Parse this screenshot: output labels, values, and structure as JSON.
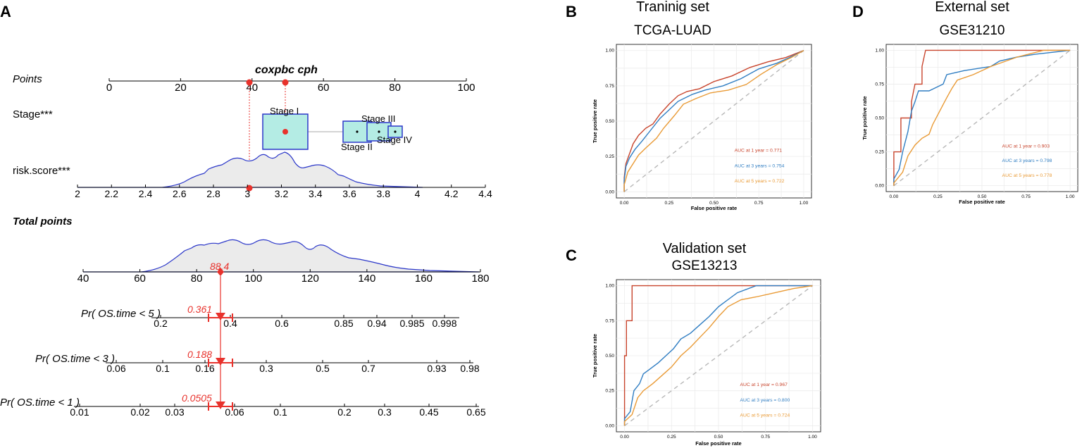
{
  "panels": {
    "A": "A",
    "B": "B",
    "C": "C",
    "D": "D"
  },
  "nomogram": {
    "title": "coxpbc cph",
    "points_label": "Points",
    "points_ticks": [
      "0",
      "20",
      "40",
      "60",
      "80",
      "100"
    ],
    "stage_label": "Stage***",
    "stage_boxes": [
      {
        "label": "Stage I",
        "points": 50
      },
      {
        "label": "Stage II",
        "points": 70
      },
      {
        "label": "Stage III",
        "points": 75
      },
      {
        "label": "Stage IV",
        "points": 79
      }
    ],
    "risk_label": "risk.score***",
    "risk_ticks": [
      "2",
      "2.2",
      "2.4",
      "2.6",
      "2.8",
      "3",
      "3.2",
      "3.4",
      "3.6",
      "3.8",
      "4",
      "4.2",
      "4.4"
    ],
    "total_label": "Total points",
    "total_ticks": [
      "40",
      "60",
      "80",
      "100",
      "120",
      "140",
      "160",
      "180"
    ],
    "total_value": "88.4",
    "prob_rows": [
      {
        "label": "Pr( OS.time < 5 )",
        "value": "0.361",
        "ticks": [
          "0.2",
          "0.4",
          "0.6",
          "0.85",
          "0.94",
          "0.985",
          "0.998"
        ]
      },
      {
        "label": "Pr( OS.time < 3 )",
        "value": "0.188",
        "ticks": [
          "0.06",
          "0.1",
          "0.16",
          "0.3",
          "0.5",
          "0.7",
          "0.93",
          "0.98"
        ]
      },
      {
        "label": "Pr( OS.time < 1 )",
        "value": "0.0505",
        "ticks": [
          "0.01",
          "0.02",
          "0.03",
          "0.06",
          "0.1",
          "0.2",
          "0.3",
          "0.45",
          "0.65"
        ]
      }
    ]
  },
  "colors": {
    "red": "#e8322c",
    "blue": "#2b37c9",
    "teal": "#b4ece4",
    "roc1": "#c8442c",
    "roc3": "#2f7dc2",
    "roc5": "#e99a35"
  },
  "chart_data": [
    {
      "panel": "B",
      "type": "line",
      "title": "Traninig set",
      "subtitle": "TCGA-LUAD",
      "xlabel": "False positive rate",
      "ylabel": "True positive rate",
      "xlim": [
        0,
        1
      ],
      "ylim": [
        0,
        1
      ],
      "ticks": [
        "0.00",
        "0.25",
        "0.50",
        "0.75",
        "1.00"
      ],
      "legend": [
        "AUC at 1 year = 0.771",
        "AUC at 3 years = 0.754",
        "AUC at 5 years = 0.722"
      ],
      "series": [
        {
          "name": "1 year",
          "values": [
            [
              0,
              0
            ],
            [
              0,
              0.1
            ],
            [
              0.01,
              0.2
            ],
            [
              0.03,
              0.27
            ],
            [
              0.05,
              0.34
            ],
            [
              0.08,
              0.4
            ],
            [
              0.12,
              0.45
            ],
            [
              0.16,
              0.48
            ],
            [
              0.2,
              0.55
            ],
            [
              0.25,
              0.62
            ],
            [
              0.3,
              0.68
            ],
            [
              0.35,
              0.71
            ],
            [
              0.42,
              0.73
            ],
            [
              0.5,
              0.78
            ],
            [
              0.6,
              0.82
            ],
            [
              0.7,
              0.88
            ],
            [
              0.8,
              0.92
            ],
            [
              0.9,
              0.95
            ],
            [
              1,
              1
            ]
          ]
        },
        {
          "name": "3 years",
          "values": [
            [
              0,
              0
            ],
            [
              0,
              0.08
            ],
            [
              0.01,
              0.18
            ],
            [
              0.03,
              0.24
            ],
            [
              0.06,
              0.3
            ],
            [
              0.1,
              0.36
            ],
            [
              0.15,
              0.44
            ],
            [
              0.2,
              0.52
            ],
            [
              0.25,
              0.58
            ],
            [
              0.3,
              0.64
            ],
            [
              0.38,
              0.69
            ],
            [
              0.45,
              0.72
            ],
            [
              0.55,
              0.75
            ],
            [
              0.65,
              0.8
            ],
            [
              0.75,
              0.87
            ],
            [
              0.85,
              0.91
            ],
            [
              0.92,
              0.95
            ],
            [
              1,
              1
            ]
          ]
        },
        {
          "name": "5 years",
          "values": [
            [
              0,
              0
            ],
            [
              0,
              0.05
            ],
            [
              0.02,
              0.14
            ],
            [
              0.05,
              0.2
            ],
            [
              0.08,
              0.26
            ],
            [
              0.12,
              0.31
            ],
            [
              0.18,
              0.38
            ],
            [
              0.22,
              0.45
            ],
            [
              0.28,
              0.54
            ],
            [
              0.33,
              0.62
            ],
            [
              0.4,
              0.66
            ],
            [
              0.48,
              0.7
            ],
            [
              0.58,
              0.72
            ],
            [
              0.68,
              0.76
            ],
            [
              0.76,
              0.83
            ],
            [
              0.85,
              0.9
            ],
            [
              0.93,
              0.95
            ],
            [
              1,
              1
            ]
          ]
        }
      ]
    },
    {
      "panel": "C",
      "type": "line",
      "title": "Validation set",
      "subtitle": "GSE13213",
      "xlabel": "False positive rate",
      "ylabel": "True positive rate",
      "xlim": [
        0,
        1
      ],
      "ylim": [
        0,
        1
      ],
      "ticks": [
        "0.00",
        "0.25",
        "0.50",
        "0.75",
        "1.00"
      ],
      "legend": [
        "AUC at 1 year = 0.967",
        "AUC at 3 years = 0.800",
        "AUC at 5 years = 0.724"
      ],
      "series": [
        {
          "name": "1 year",
          "values": [
            [
              0,
              0
            ],
            [
              0,
              0.5
            ],
            [
              0.01,
              0.5
            ],
            [
              0.01,
              0.75
            ],
            [
              0.04,
              0.75
            ],
            [
              0.04,
              1
            ],
            [
              0.6,
              1
            ],
            [
              0.6,
              1
            ],
            [
              1,
              1
            ]
          ]
        },
        {
          "name": "3 years",
          "values": [
            [
              0,
              0
            ],
            [
              0,
              0.05
            ],
            [
              0.03,
              0.1
            ],
            [
              0.05,
              0.25
            ],
            [
              0.08,
              0.3
            ],
            [
              0.1,
              0.37
            ],
            [
              0.13,
              0.4
            ],
            [
              0.18,
              0.45
            ],
            [
              0.22,
              0.5
            ],
            [
              0.26,
              0.55
            ],
            [
              0.3,
              0.62
            ],
            [
              0.35,
              0.66
            ],
            [
              0.4,
              0.72
            ],
            [
              0.45,
              0.78
            ],
            [
              0.5,
              0.85
            ],
            [
              0.55,
              0.9
            ],
            [
              0.6,
              0.95
            ],
            [
              0.7,
              1
            ],
            [
              0.9,
              1
            ],
            [
              1,
              1
            ]
          ]
        },
        {
          "name": "5 years",
          "values": [
            [
              0,
              0
            ],
            [
              0,
              0.03
            ],
            [
              0.04,
              0.08
            ],
            [
              0.07,
              0.2
            ],
            [
              0.1,
              0.25
            ],
            [
              0.15,
              0.3
            ],
            [
              0.2,
              0.36
            ],
            [
              0.25,
              0.42
            ],
            [
              0.3,
              0.5
            ],
            [
              0.35,
              0.56
            ],
            [
              0.4,
              0.63
            ],
            [
              0.45,
              0.7
            ],
            [
              0.5,
              0.78
            ],
            [
              0.55,
              0.85
            ],
            [
              0.62,
              0.9
            ],
            [
              0.7,
              0.92
            ],
            [
              0.8,
              0.95
            ],
            [
              0.9,
              0.98
            ],
            [
              1,
              1
            ]
          ]
        }
      ]
    },
    {
      "panel": "D",
      "type": "line",
      "title": "External set",
      "subtitle": "GSE31210",
      "xlabel": "False positive rate",
      "ylabel": "True positive rate",
      "xlim": [
        0,
        1
      ],
      "ylim": [
        0,
        1
      ],
      "ticks": [
        "0.00",
        "0.25",
        "0.50",
        "0.75",
        "1.00"
      ],
      "legend": [
        "AUC at 1 year = 0.903",
        "AUC at 3 years = 0.798",
        "AUC at 5 years = 0.778"
      ],
      "series": [
        {
          "name": "1 year",
          "values": [
            [
              0,
              0
            ],
            [
              0,
              0.25
            ],
            [
              0.04,
              0.25
            ],
            [
              0.04,
              0.5
            ],
            [
              0.1,
              0.5
            ],
            [
              0.1,
              0.62
            ],
            [
              0.12,
              0.75
            ],
            [
              0.16,
              0.75
            ],
            [
              0.16,
              0.88
            ],
            [
              0.18,
              1
            ],
            [
              1,
              1
            ]
          ]
        },
        {
          "name": "3 years",
          "values": [
            [
              0,
              0
            ],
            [
              0,
              0.05
            ],
            [
              0.03,
              0.12
            ],
            [
              0.05,
              0.25
            ],
            [
              0.08,
              0.4
            ],
            [
              0.1,
              0.55
            ],
            [
              0.12,
              0.62
            ],
            [
              0.14,
              0.7
            ],
            [
              0.2,
              0.7
            ],
            [
              0.28,
              0.75
            ],
            [
              0.3,
              0.82
            ],
            [
              0.4,
              0.85
            ],
            [
              0.55,
              0.88
            ],
            [
              0.6,
              0.92
            ],
            [
              0.7,
              0.95
            ],
            [
              0.8,
              0.97
            ],
            [
              1,
              1
            ]
          ]
        },
        {
          "name": "5 years",
          "values": [
            [
              0,
              0
            ],
            [
              0,
              0.02
            ],
            [
              0.05,
              0.1
            ],
            [
              0.08,
              0.22
            ],
            [
              0.12,
              0.3
            ],
            [
              0.16,
              0.35
            ],
            [
              0.2,
              0.38
            ],
            [
              0.22,
              0.45
            ],
            [
              0.26,
              0.55
            ],
            [
              0.3,
              0.65
            ],
            [
              0.33,
              0.72
            ],
            [
              0.36,
              0.78
            ],
            [
              0.45,
              0.82
            ],
            [
              0.55,
              0.88
            ],
            [
              0.7,
              0.95
            ],
            [
              0.85,
              1
            ],
            [
              1,
              1
            ]
          ]
        }
      ]
    }
  ]
}
